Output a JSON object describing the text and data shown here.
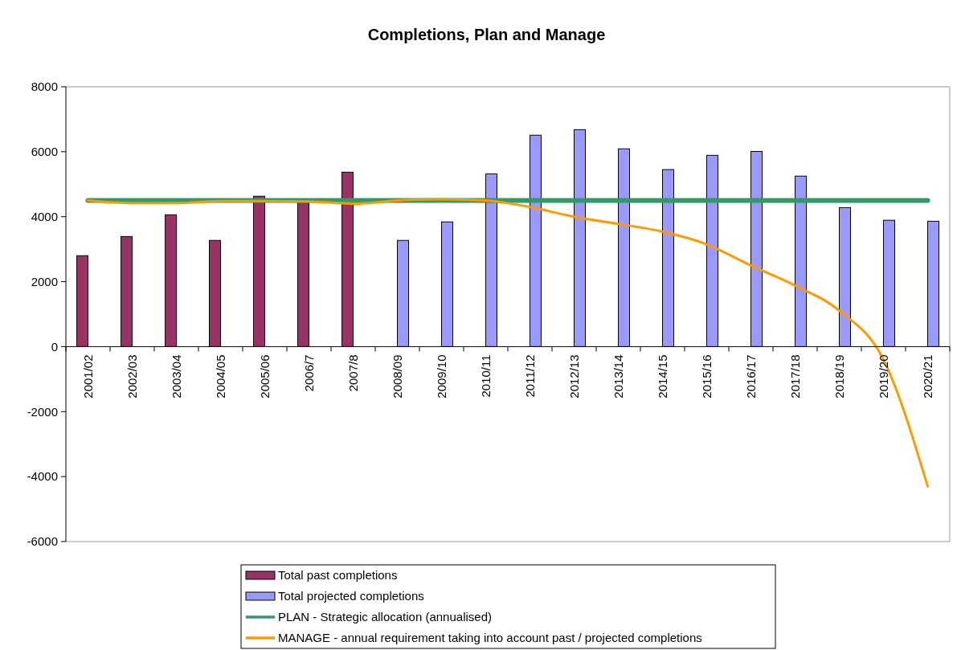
{
  "chart_data": {
    "type": "bar",
    "title": "Completions, Plan and Manage",
    "categories": [
      "2001/02",
      "2002/03",
      "2003/04",
      "2004/05",
      "2005/06",
      "2006/7",
      "2007/8",
      "2008/09",
      "2009/10",
      "2010/11",
      "2011/12",
      "2012/13",
      "2013/14",
      "2014/15",
      "2015/16",
      "2016/17",
      "2017/18",
      "2018/19",
      "2019/20",
      "2020/21"
    ],
    "series": [
      {
        "name": "Total past completions",
        "color": "#993366",
        "values": [
          2800,
          3390,
          4060,
          3270,
          4630,
          4450,
          5370,
          null,
          null,
          null,
          null,
          null,
          null,
          null,
          null,
          null,
          null,
          null,
          null,
          null
        ]
      },
      {
        "name": "Total projected completions",
        "color": "#9999ff",
        "values": [
          null,
          null,
          null,
          null,
          null,
          null,
          null,
          3270,
          3840,
          5320,
          6510,
          6680,
          6090,
          5450,
          5890,
          6010,
          5250,
          4280,
          3890,
          3860
        ]
      },
      {
        "name": "PLAN - Strategic allocation (annualised)",
        "type": "line",
        "color": "#339966",
        "values": [
          4500,
          4500,
          4500,
          4500,
          4500,
          4500,
          4500,
          4500,
          4500,
          4500,
          4500,
          4500,
          4500,
          4500,
          4500,
          4500,
          4500,
          4500,
          4500,
          4500
        ]
      },
      {
        "name": "MANAGE - annual requirement taking into account past / projected completions",
        "type": "line",
        "color": "#ff9900",
        "values": [
          4500,
          4420,
          4420,
          4480,
          4480,
          4470,
          4400,
          4500,
          4540,
          4500,
          4300,
          4000,
          3780,
          3540,
          3150,
          2500,
          1880,
          1110,
          -400,
          -4300
        ]
      }
    ],
    "ylim": [
      -6000,
      8000
    ],
    "yticks": [
      -6000,
      -4000,
      -2000,
      0,
      2000,
      4000,
      6000,
      8000
    ],
    "grid": false,
    "legend": "bottom",
    "marker": "none",
    "line_style": "solid"
  }
}
